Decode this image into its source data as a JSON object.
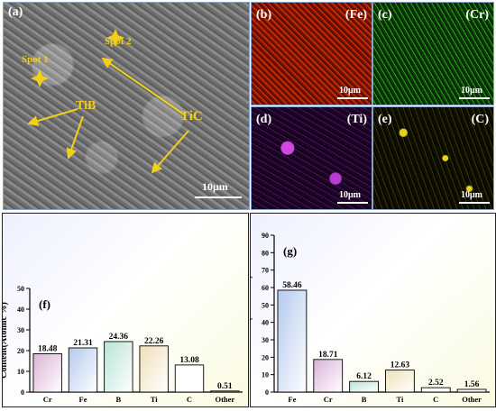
{
  "images": {
    "sem": {
      "label": "(a)",
      "scale": "10μm",
      "annotations": {
        "spot1": "Spot 1",
        "spot2": "Spot 2",
        "tib": "TiB",
        "tic": "TiC"
      }
    },
    "maps": [
      {
        "label": "(b)",
        "element": "(Fe)",
        "scale": "10μm",
        "color": "#c22a00"
      },
      {
        "label": "(c)",
        "element": "(Cr)",
        "scale": "10μm",
        "color": "#2da31c"
      },
      {
        "label": "(d)",
        "element": "(Ti)",
        "scale": "10μm",
        "color": "#c040d8"
      },
      {
        "label": "(e)",
        "element": "(C)",
        "scale": "10μm",
        "color": "#e6d21b"
      }
    ]
  },
  "chart_data": [
    {
      "type": "bar",
      "panel_label": "(f)",
      "ylabel": "Content(Atomic %)",
      "ylim": [
        0,
        50
      ],
      "yticks": [
        0,
        10,
        20,
        30,
        40,
        50
      ],
      "categories": [
        "Cr",
        "Fe",
        "B",
        "Ti",
        "C",
        "Other"
      ],
      "values": [
        18.48,
        21.31,
        24.36,
        22.26,
        13.08,
        0.51
      ],
      "value_labels": [
        "18.48",
        "21.31",
        "24.36",
        "22.26",
        "13.08",
        "0.51"
      ],
      "bar_colors": [
        "#d9b3d6",
        "#b3c9ee",
        "#b9e3d6",
        "#efe0b8",
        "#ffffff",
        "#ffffff"
      ]
    },
    {
      "type": "bar",
      "panel_label": "(g)",
      "ylabel": "Content(Atomic %)",
      "ylim": [
        0,
        90
      ],
      "yticks": [
        0,
        10,
        20,
        30,
        40,
        50,
        60,
        70,
        80,
        90
      ],
      "categories": [
        "Fe",
        "Cr",
        "B",
        "Ti",
        "C",
        "Other"
      ],
      "values": [
        58.46,
        18.71,
        6.12,
        12.63,
        2.52,
        1.56
      ],
      "value_labels": [
        "58.46",
        "18.71",
        "6.12",
        "12.63",
        "2.52",
        "1.56"
      ],
      "bar_colors": [
        "#b3c9ee",
        "#d9b3d6",
        "#b9e3d6",
        "#efe0b8",
        "#ffffff",
        "#ffffff"
      ]
    }
  ]
}
